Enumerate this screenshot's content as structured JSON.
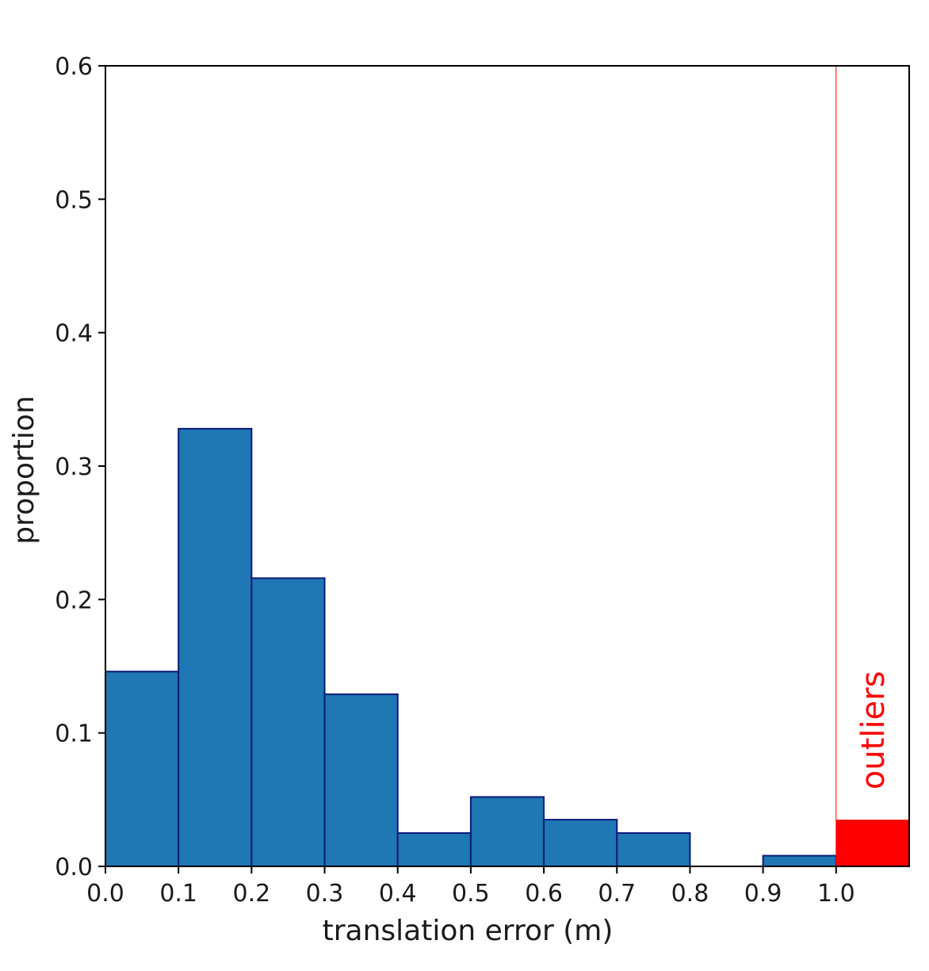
{
  "chart_data": {
    "type": "bar",
    "title": "",
    "xlabel": "translation error (m)",
    "ylabel": "proportion",
    "xlim": [
      0.0,
      1.1
    ],
    "ylim": [
      0.0,
      0.6
    ],
    "xticks": [
      "0.0",
      "0.1",
      "0.2",
      "0.3",
      "0.4",
      "0.5",
      "0.6",
      "0.7",
      "0.8",
      "0.9",
      "1.0"
    ],
    "yticks": [
      "0.0",
      "0.1",
      "0.2",
      "0.3",
      "0.4",
      "0.5",
      "0.6"
    ],
    "grid": false,
    "bins": [
      {
        "x0": 0.0,
        "x1": 0.1,
        "value": 0.146
      },
      {
        "x0": 0.1,
        "x1": 0.2,
        "value": 0.328
      },
      {
        "x0": 0.2,
        "x1": 0.3,
        "value": 0.216
      },
      {
        "x0": 0.3,
        "x1": 0.4,
        "value": 0.129
      },
      {
        "x0": 0.4,
        "x1": 0.5,
        "value": 0.025
      },
      {
        "x0": 0.5,
        "x1": 0.6,
        "value": 0.052
      },
      {
        "x0": 0.6,
        "x1": 0.7,
        "value": 0.035
      },
      {
        "x0": 0.7,
        "x1": 0.8,
        "value": 0.025
      },
      {
        "x0": 0.8,
        "x1": 0.9,
        "value": 0.0
      },
      {
        "x0": 0.9,
        "x1": 1.0,
        "value": 0.008
      }
    ],
    "outliers": {
      "label": "outliers",
      "x0": 1.0,
      "x1": 1.1,
      "value": 0.035,
      "threshold": 1.0
    },
    "colors": {
      "bar_fill": "#1f77b4",
      "bar_edge": "#0a1a7a",
      "outlier": "#ff0000",
      "axis": "#000000"
    }
  }
}
